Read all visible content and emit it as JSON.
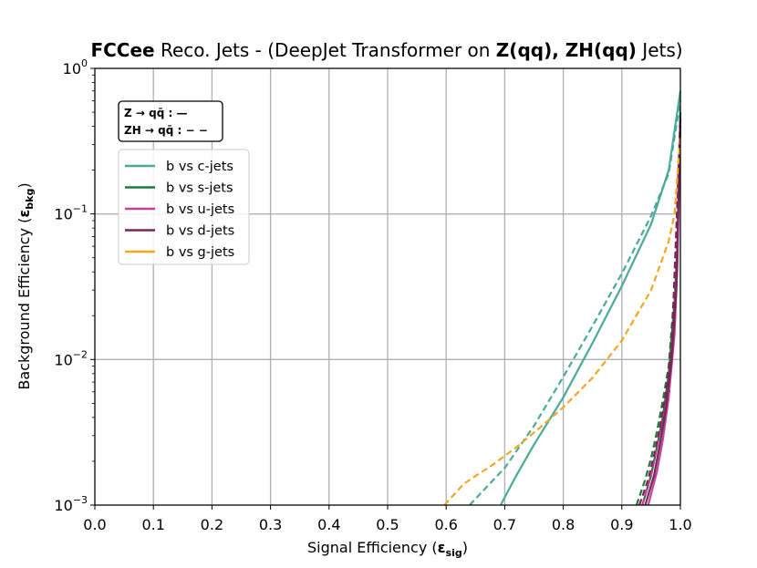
{
  "chart_data": {
    "type": "line",
    "title": {
      "bold1": "FCCee",
      "plain1": " Reco. Jets - (DeepJet Transformer on ",
      "bold2": "Z(qq), ZH(qq)",
      "plain2": " Jets)"
    },
    "xlabel": "Signal Efficiency",
    "xlabel_symbol": "ε",
    "xlabel_sub": "sig",
    "ylabel": "Background Efficiency",
    "ylabel_symbol": "ε",
    "ylabel_sub": "bkg",
    "xlim": [
      0.0,
      1.0
    ],
    "ylim": [
      0.001,
      1.0
    ],
    "yscale": "log",
    "grid": true,
    "x_ticks": [
      "0.0",
      "0.1",
      "0.2",
      "0.3",
      "0.4",
      "0.5",
      "0.6",
      "0.7",
      "0.8",
      "0.9",
      "1.0"
    ],
    "y_ticks": [
      {
        "value": 0.001,
        "base": "10",
        "exp": "−3"
      },
      {
        "value": 0.01,
        "base": "10",
        "exp": "−2"
      },
      {
        "value": 0.1,
        "base": "10",
        "exp": "−1"
      },
      {
        "value": 1.0,
        "base": "10",
        "exp": "0"
      }
    ],
    "style_box": {
      "line1": "Z → qq̄ :  —",
      "line2": "ZH → qq̄ : − −",
      "placement": "top-left"
    },
    "legend_placement": "upper-left",
    "series": [
      {
        "name": "b vs c-jets",
        "color": "#4aaa9a",
        "style": "solid",
        "x": [
          0.693,
          0.72,
          0.75,
          0.8,
          0.85,
          0.9,
          0.95,
          0.98,
          1.0
        ],
        "y": [
          0.001,
          0.0016,
          0.0026,
          0.0055,
          0.013,
          0.032,
          0.085,
          0.2,
          0.7
        ]
      },
      {
        "name": "b vs c-jets (ZH)",
        "color": "#4aaa9a",
        "style": "dashed",
        "x": [
          0.64,
          0.7,
          0.75,
          0.8,
          0.85,
          0.9,
          0.95,
          0.98,
          1.0
        ],
        "y": [
          0.001,
          0.0018,
          0.0035,
          0.0076,
          0.017,
          0.039,
          0.097,
          0.19,
          0.6
        ]
      },
      {
        "name": "b vs s-jets",
        "color": "#1f7a3a",
        "style": "solid",
        "x": [
          0.935,
          0.95,
          0.96,
          0.97,
          0.98,
          0.99,
          0.995,
          1.0
        ],
        "y": [
          0.001,
          0.0016,
          0.0025,
          0.004,
          0.008,
          0.025,
          0.06,
          0.5
        ]
      },
      {
        "name": "b vs s-jets (ZH)",
        "color": "#1f7a3a",
        "style": "dashed",
        "x": [
          0.925,
          0.94,
          0.95,
          0.96,
          0.97,
          0.98,
          0.99,
          1.0
        ],
        "y": [
          0.001,
          0.0015,
          0.0021,
          0.0032,
          0.0052,
          0.009,
          0.03,
          0.5
        ]
      },
      {
        "name": "b vs u-jets",
        "color": "#c0449a",
        "style": "solid",
        "x": [
          0.945,
          0.96,
          0.97,
          0.98,
          0.99,
          0.995,
          1.0
        ],
        "y": [
          0.001,
          0.0017,
          0.0028,
          0.0055,
          0.015,
          0.045,
          0.45
        ]
      },
      {
        "name": "b vs u-jets (ZH)",
        "color": "#c0449a",
        "style": "dashed",
        "x": [
          0.935,
          0.95,
          0.96,
          0.97,
          0.98,
          0.99,
          1.0
        ],
        "y": [
          0.001,
          0.0016,
          0.0025,
          0.0042,
          0.008,
          0.02,
          0.4
        ]
      },
      {
        "name": "b vs d-jets",
        "color": "#7b2458",
        "style": "solid",
        "x": [
          0.94,
          0.955,
          0.965,
          0.975,
          0.985,
          0.993,
          1.0
        ],
        "y": [
          0.001,
          0.0016,
          0.0026,
          0.0045,
          0.01,
          0.03,
          0.45
        ]
      },
      {
        "name": "b vs d-jets (ZH)",
        "color": "#7b2458",
        "style": "dashed",
        "x": [
          0.93,
          0.945,
          0.955,
          0.965,
          0.975,
          0.985,
          1.0
        ],
        "y": [
          0.001,
          0.0015,
          0.0022,
          0.0034,
          0.0058,
          0.012,
          0.4
        ]
      },
      {
        "name": "b vs g-jets",
        "color": "#f5a623",
        "style": "dashed",
        "x": [
          0.597,
          0.63,
          0.68,
          0.72,
          0.76,
          0.8,
          0.85,
          0.9,
          0.95,
          0.98,
          0.99,
          1.0
        ],
        "y": [
          0.001,
          0.0014,
          0.0019,
          0.0025,
          0.0034,
          0.0047,
          0.0075,
          0.0135,
          0.03,
          0.065,
          0.1,
          0.35
        ]
      }
    ],
    "legend_entries": [
      {
        "label": "b vs c-jets",
        "color": "#4aaa9a"
      },
      {
        "label": "b vs s-jets",
        "color": "#1f7a3a"
      },
      {
        "label": "b vs u-jets",
        "color": "#c0449a"
      },
      {
        "label": "b vs d-jets",
        "color": "#7b2458"
      },
      {
        "label": "b vs g-jets",
        "color": "#f5a623"
      }
    ]
  }
}
